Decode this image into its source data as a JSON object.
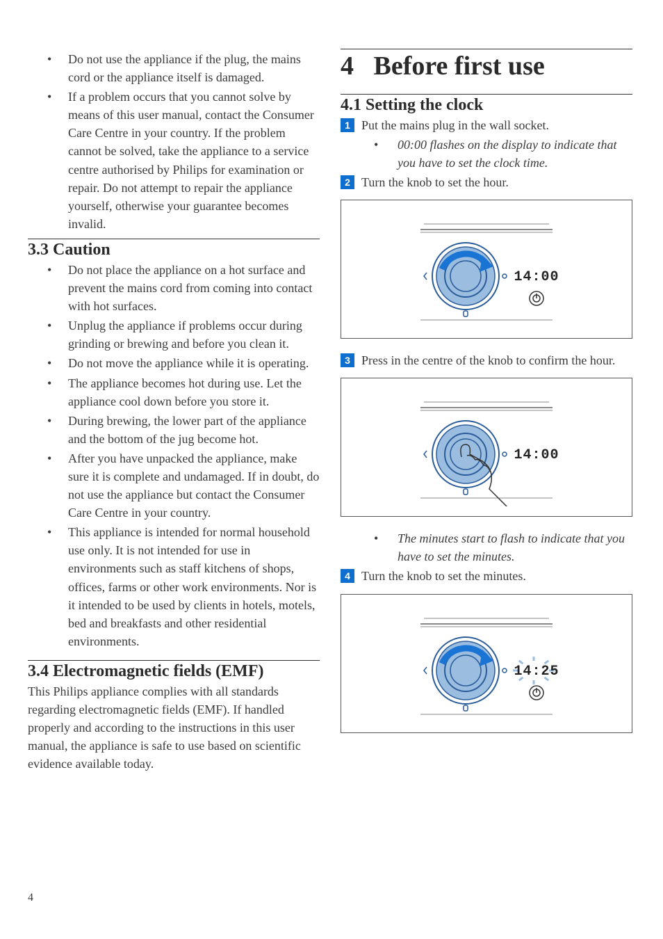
{
  "page_number": "4",
  "colors": {
    "text": "#3a3a3a",
    "heading": "#2a2a2a",
    "step_badge_bg": "#0f6fcf",
    "step_badge_fg": "#ffffff",
    "knob_fill": "#9abde0",
    "knob_stroke": "#2a5c9a",
    "arrow_fill": "#1a74d4",
    "figure_border": "#555555",
    "line_gray": "#888888"
  },
  "left": {
    "intro_bullets": [
      "Do not use the appliance if the plug, the mains cord or the appliance itself is damaged.",
      "If a problem occurs that you cannot solve by means of this user manual, contact the Consumer Care Centre in your country. If the problem cannot be solved, take the appliance to a service centre authorised by Philips for examination or repair. Do not attempt to repair the appliance yourself, otherwise your guarantee becomes invalid."
    ],
    "s33": {
      "title": "3.3 Caution",
      "bullets": [
        "Do not place the appliance on a hot surface and prevent the mains cord from coming into contact with hot surfaces.",
        "Unplug the appliance if problems occur during grinding or brewing and before you clean it.",
        "Do not move the appliance while it is operating.",
        "The appliance becomes hot during use. Let the appliance cool down before you store it.",
        "During brewing, the lower part of the appliance and the bottom of the jug become hot.",
        "After you have unpacked the appliance, make sure it is complete and undamaged. If in doubt, do not use the appliance but contact the Consumer Care Centre in your country.",
        "This appliance is intended for normal household use only. It is not intended for use in environments such as staff kitchens of shops, offices, farms or other work environments. Nor is it intended to be used by clients in hotels, motels, bed and breakfasts and other residential environments."
      ]
    },
    "s34": {
      "title": "3.4 Electromagnetic fields (EMF)",
      "text": "This Philips appliance complies with all standards regarding electromagnetic fields (EMF). If handled properly and according to the instructions in this user manual, the appliance is safe to use based on scientific evidence available today."
    }
  },
  "right": {
    "chapter_num": "4",
    "chapter_title": "Before first use",
    "s41": {
      "title": "4.1 Setting the clock",
      "step1": {
        "num": "1",
        "text": "Put the mains plug in the wall socket."
      },
      "sub1": " 00:00 flashes on the display to indicate that you have to set the clock time.",
      "step2": {
        "num": "2",
        "text": "Turn the knob to set the hour."
      },
      "fig1": {
        "display": "14:00",
        "show_arrow": true,
        "show_hand": false,
        "show_power": true,
        "flash": false
      },
      "step3": {
        "num": "3",
        "text": "Press in the centre of the knob to confirm the hour."
      },
      "fig2": {
        "display": "14:00",
        "show_arrow": false,
        "show_hand": true,
        "show_power": false,
        "flash": false
      },
      "sub2": "The minutes start to flash to indicate that you have to set the minutes.",
      "step4": {
        "num": "4",
        "text": "Turn the knob to set the minutes."
      },
      "fig3": {
        "display": "14:25",
        "show_arrow": true,
        "show_hand": false,
        "show_power": true,
        "flash": true
      }
    }
  }
}
